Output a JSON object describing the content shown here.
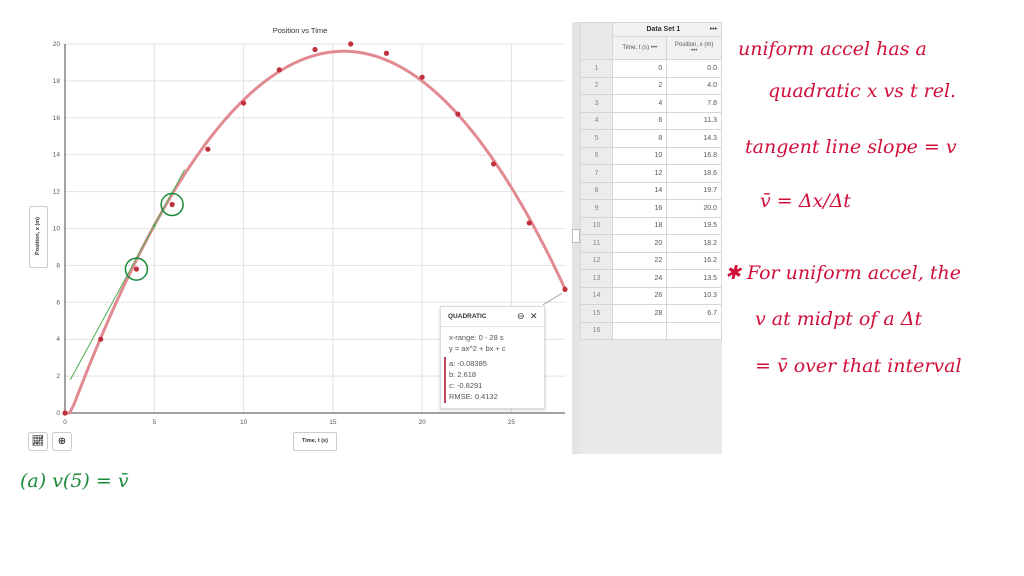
{
  "chart_data": {
    "type": "scatter",
    "title": "Position vs Time",
    "xlabel": "Time, t (s)",
    "ylabel": "Position, x (m)",
    "xlim": [
      0,
      28
    ],
    "ylim": [
      0,
      20
    ],
    "xticks": [
      0,
      5,
      10,
      15,
      20,
      25
    ],
    "yticks": [
      0,
      2,
      4,
      6,
      8,
      10,
      12,
      14,
      16,
      18,
      20
    ],
    "grid": true,
    "x": [
      0,
      2,
      4,
      6,
      8,
      10,
      12,
      14,
      16,
      18,
      20,
      22,
      24,
      26,
      28
    ],
    "y": [
      0.0,
      4.0,
      7.8,
      11.3,
      14.3,
      16.8,
      18.6,
      19.7,
      20.0,
      19.5,
      18.2,
      16.2,
      13.5,
      10.3,
      6.7
    ],
    "fit": {
      "type": "quadratic",
      "a": -0.08385,
      "b": 2.618,
      "c": -0.8291
    },
    "colors": {
      "points": "#c0303c",
      "fit": "#e28a92",
      "tangent": "#4caf50",
      "annotation": "#1a8a3a"
    }
  },
  "fit_panel": {
    "title": "QUADRATIC",
    "range": "x-range: 0 - 28 s",
    "equation": "y = ax^2 + bx + c",
    "a": "a: -0.08385",
    "b": "b: 2.618",
    "c": "c: -0.8291",
    "rmse": "RMSE: 0.4132"
  },
  "table": {
    "title": "Data Set 1",
    "menu": "•••",
    "col1": "Time, t (s)",
    "col2": "Position, x (m)",
    "rows": [
      [
        "1",
        "0",
        "0.0"
      ],
      [
        "2",
        "2",
        "4.0"
      ],
      [
        "3",
        "4",
        "7.8"
      ],
      [
        "4",
        "6",
        "11.3"
      ],
      [
        "5",
        "8",
        "14.3"
      ],
      [
        "6",
        "10",
        "16.8"
      ],
      [
        "7",
        "12",
        "18.6"
      ],
      [
        "8",
        "14",
        "19.7"
      ],
      [
        "9",
        "16",
        "20.0"
      ],
      [
        "10",
        "18",
        "19.5"
      ],
      [
        "11",
        "20",
        "18.2"
      ],
      [
        "12",
        "22",
        "16.2"
      ],
      [
        "13",
        "24",
        "13.5"
      ],
      [
        "14",
        "26",
        "10.3"
      ],
      [
        "15",
        "28",
        "6.7"
      ],
      [
        "16",
        "",
        ""
      ]
    ]
  },
  "toolbar": {
    "graph_icon": "chart-line-icon",
    "zoom_icon": "zoom-icon"
  },
  "notes": [
    "uniform accel has a",
    "quadratic x vs t rel.",
    "tangent line slope = v",
    "v̄ = Δx/Δt",
    "✱ For uniform accel, the",
    "v at midpt of a Δt",
    "= v̄ over that interval",
    "(a) v(5) = v̄"
  ]
}
